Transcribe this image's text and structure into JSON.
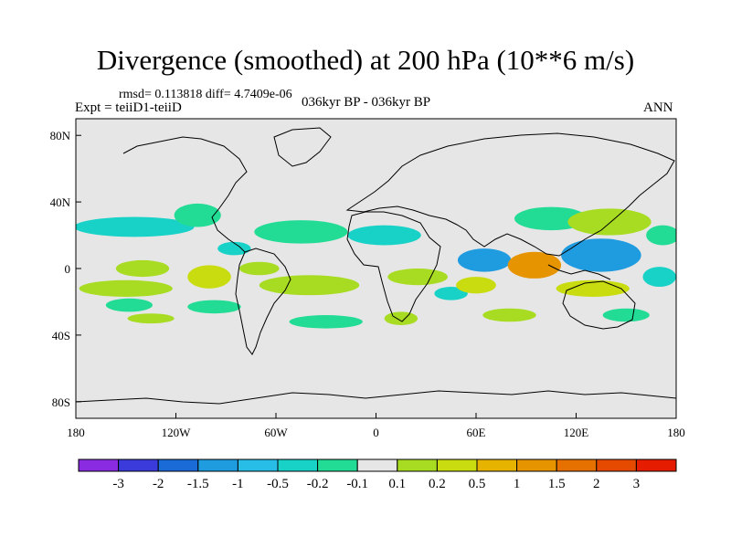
{
  "title": "Divergence (smoothed) at 200 hPa (10**6 m/s)",
  "stats": "rmsd= 0.113818 diff= 4.7409e-06",
  "expt": "Expt = teiiD1-teiiD",
  "period": "036kyr BP - 036kyr BP",
  "season": "ANN",
  "chart_data": {
    "type": "heatmap",
    "projection": "cylindrical-equidistant",
    "xlim": [
      -180,
      180
    ],
    "ylim": [
      -90,
      90
    ],
    "x_ticks": [
      {
        "value": -180,
        "label": "180"
      },
      {
        "value": -120,
        "label": "120W"
      },
      {
        "value": -60,
        "label": "60W"
      },
      {
        "value": 0,
        "label": "0"
      },
      {
        "value": 60,
        "label": "60E"
      },
      {
        "value": 120,
        "label": "120E"
      },
      {
        "value": 180,
        "label": "180"
      }
    ],
    "y_ticks": [
      {
        "value": 80,
        "label": "80N"
      },
      {
        "value": 40,
        "label": "40N"
      },
      {
        "value": 0,
        "label": "0"
      },
      {
        "value": -40,
        "label": "40S"
      },
      {
        "value": -80,
        "label": "80S"
      }
    ],
    "background_color": "#e6e6e6",
    "colorbar": {
      "colors": [
        "#8a2be2",
        "#3b3bdc",
        "#1a6ad8",
        "#1f9be0",
        "#28bde6",
        "#18d2c8",
        "#22dc95",
        "#e6e6e6",
        "#a8dc22",
        "#c8dc10",
        "#e6b400",
        "#e69400",
        "#e67000",
        "#e64a00",
        "#e61c00"
      ],
      "labels": [
        "-3",
        "-2",
        "-1.5",
        "-1",
        "-0.5",
        "-0.2",
        "-0.1",
        "0.1",
        "0.2",
        "0.5",
        "1",
        "1.5",
        "2",
        "3"
      ]
    },
    "regions": [
      {
        "lon": -145,
        "lat": 25,
        "rx": 36,
        "ry": 6,
        "color": "#18d2c8"
      },
      {
        "lon": -107,
        "lat": 32,
        "rx": 14,
        "ry": 7,
        "color": "#22dc95"
      },
      {
        "lon": -140,
        "lat": 0,
        "rx": 16,
        "ry": 5,
        "color": "#a8dc22"
      },
      {
        "lon": -100,
        "lat": -5,
        "rx": 13,
        "ry": 7,
        "color": "#c8dc10"
      },
      {
        "lon": -150,
        "lat": -12,
        "rx": 28,
        "ry": 5,
        "color": "#a8dc22"
      },
      {
        "lon": -148,
        "lat": -22,
        "rx": 14,
        "ry": 4,
        "color": "#22dc95"
      },
      {
        "lon": -97,
        "lat": -23,
        "rx": 16,
        "ry": 4,
        "color": "#22dc95"
      },
      {
        "lon": -135,
        "lat": -30,
        "rx": 14,
        "ry": 3,
        "color": "#a8dc22"
      },
      {
        "lon": -85,
        "lat": 12,
        "rx": 10,
        "ry": 4,
        "color": "#18d2c8"
      },
      {
        "lon": -70,
        "lat": 0,
        "rx": 12,
        "ry": 4,
        "color": "#a8dc22"
      },
      {
        "lon": -45,
        "lat": 22,
        "rx": 28,
        "ry": 7,
        "color": "#22dc95"
      },
      {
        "lon": -40,
        "lat": -10,
        "rx": 30,
        "ry": 6,
        "color": "#a8dc22"
      },
      {
        "lon": -30,
        "lat": -32,
        "rx": 22,
        "ry": 4,
        "color": "#22dc95"
      },
      {
        "lon": 5,
        "lat": 20,
        "rx": 22,
        "ry": 6,
        "color": "#18d2c8"
      },
      {
        "lon": 25,
        "lat": -5,
        "rx": 18,
        "ry": 5,
        "color": "#a8dc22"
      },
      {
        "lon": 15,
        "lat": -30,
        "rx": 10,
        "ry": 4,
        "color": "#a8dc22"
      },
      {
        "lon": 45,
        "lat": -15,
        "rx": 10,
        "ry": 4,
        "color": "#18d2c8"
      },
      {
        "lon": 65,
        "lat": 5,
        "rx": 16,
        "ry": 7,
        "color": "#1f9be0"
      },
      {
        "lon": 60,
        "lat": -10,
        "rx": 12,
        "ry": 5,
        "color": "#c8dc10"
      },
      {
        "lon": 80,
        "lat": -28,
        "rx": 16,
        "ry": 4,
        "color": "#a8dc22"
      },
      {
        "lon": 95,
        "lat": 2,
        "rx": 16,
        "ry": 8,
        "color": "#e69400"
      },
      {
        "lon": 105,
        "lat": 30,
        "rx": 22,
        "ry": 7,
        "color": "#22dc95"
      },
      {
        "lon": 140,
        "lat": 28,
        "rx": 25,
        "ry": 8,
        "color": "#a8dc22"
      },
      {
        "lon": 135,
        "lat": 8,
        "rx": 24,
        "ry": 10,
        "color": "#1f9be0"
      },
      {
        "lon": 130,
        "lat": -12,
        "rx": 22,
        "ry": 5,
        "color": "#c8dc10"
      },
      {
        "lon": 150,
        "lat": -28,
        "rx": 14,
        "ry": 4,
        "color": "#22dc95"
      },
      {
        "lon": 172,
        "lat": 20,
        "rx": 10,
        "ry": 6,
        "color": "#22dc95"
      },
      {
        "lon": 170,
        "lat": -5,
        "rx": 10,
        "ry": 6,
        "color": "#18d2c8"
      }
    ]
  }
}
